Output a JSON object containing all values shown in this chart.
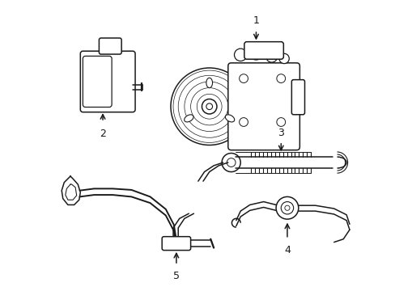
{
  "background_color": "#ffffff",
  "line_color": "#1a1a1a",
  "line_width": 1.1,
  "fig_width": 4.89,
  "fig_height": 3.6,
  "dpi": 100
}
